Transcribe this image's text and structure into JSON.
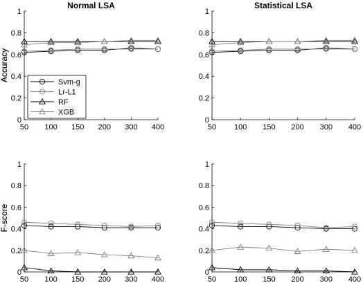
{
  "chart_data": [
    {
      "type": "line",
      "title": "Normal LSA",
      "xlabel": "",
      "ylabel": "Accuracy",
      "x": [
        50,
        100,
        150,
        200,
        300,
        400
      ],
      "x_ticks": [
        "50",
        "100",
        "150",
        "200",
        "300",
        "400"
      ],
      "y_ticks": [
        "0",
        "0.2",
        "0.4",
        "0.6",
        "0.8",
        "1"
      ],
      "ylim": [
        0,
        1
      ],
      "grid": false,
      "legend": "left",
      "series": [
        {
          "name": "Svm-g",
          "marker": "circle",
          "color": "#000000",
          "values": [
            0.62,
            0.63,
            0.64,
            0.64,
            0.66,
            0.65
          ]
        },
        {
          "name": "Lr-L1",
          "marker": "circle",
          "color": "#7f7f7f",
          "values": [
            0.63,
            0.64,
            0.65,
            0.65,
            0.65,
            0.65
          ]
        },
        {
          "name": "RF",
          "marker": "triangle",
          "color": "#000000",
          "values": [
            0.72,
            0.72,
            0.72,
            0.72,
            0.72,
            0.72
          ]
        },
        {
          "name": "XGB",
          "marker": "triangle",
          "color": "#7f7f7f",
          "values": [
            0.69,
            0.71,
            0.71,
            0.72,
            0.73,
            0.73
          ]
        }
      ]
    },
    {
      "type": "line",
      "title": "Statistical LSA",
      "xlabel": "",
      "ylabel": "Accuracy",
      "x": [
        50,
        100,
        150,
        200,
        300,
        400
      ],
      "x_ticks": [
        "50",
        "100",
        "150",
        "200",
        "300",
        "400"
      ],
      "y_ticks": [
        "0",
        "0.2",
        "0.4",
        "0.6",
        "0.8",
        "1"
      ],
      "ylim": [
        0,
        1
      ],
      "grid": false,
      "series": [
        {
          "name": "Svm-g",
          "marker": "circle",
          "color": "#000000",
          "values": [
            0.62,
            0.63,
            0.64,
            0.64,
            0.66,
            0.65
          ]
        },
        {
          "name": "Lr-L1",
          "marker": "circle",
          "color": "#7f7f7f",
          "values": [
            0.63,
            0.64,
            0.65,
            0.65,
            0.65,
            0.65
          ]
        },
        {
          "name": "RF",
          "marker": "triangle",
          "color": "#000000",
          "values": [
            0.72,
            0.72,
            0.72,
            0.72,
            0.72,
            0.72
          ]
        },
        {
          "name": "XGB",
          "marker": "triangle",
          "color": "#7f7f7f",
          "values": [
            0.69,
            0.71,
            0.72,
            0.72,
            0.73,
            0.73
          ]
        }
      ]
    },
    {
      "type": "line",
      "title": "",
      "xlabel": "",
      "ylabel": "F-score",
      "x": [
        50,
        100,
        150,
        200,
        300,
        400
      ],
      "x_ticks": [
        "50",
        "100",
        "150",
        "200",
        "300",
        "400"
      ],
      "y_ticks": [
        "0",
        "0.2",
        "0.4",
        "0.6",
        "0.8",
        "1"
      ],
      "ylim": [
        0,
        1
      ],
      "grid": false,
      "series": [
        {
          "name": "Svm-g",
          "marker": "circle",
          "color": "#000000",
          "values": [
            0.43,
            0.42,
            0.42,
            0.41,
            0.41,
            0.41
          ]
        },
        {
          "name": "Lr-L1",
          "marker": "circle",
          "color": "#7f7f7f",
          "values": [
            0.46,
            0.45,
            0.44,
            0.43,
            0.42,
            0.43
          ]
        },
        {
          "name": "RF",
          "marker": "triangle",
          "color": "#000000",
          "values": [
            0.04,
            0.01,
            0.0,
            0.0,
            0.0,
            0.0
          ]
        },
        {
          "name": "XGB",
          "marker": "triangle",
          "color": "#7f7f7f",
          "values": [
            0.2,
            0.17,
            0.18,
            0.16,
            0.15,
            0.13
          ]
        }
      ]
    },
    {
      "type": "line",
      "title": "",
      "xlabel": "",
      "ylabel": "F-score",
      "x": [
        50,
        100,
        150,
        200,
        300,
        400
      ],
      "x_ticks": [
        "50",
        "100",
        "150",
        "200",
        "300",
        "400"
      ],
      "y_ticks": [
        "0",
        "0.2",
        "0.4",
        "0.6",
        "0.8",
        "1"
      ],
      "ylim": [
        0,
        1
      ],
      "grid": false,
      "series": [
        {
          "name": "Svm-g",
          "marker": "circle",
          "color": "#000000",
          "values": [
            0.43,
            0.42,
            0.42,
            0.41,
            0.4,
            0.4
          ]
        },
        {
          "name": "Lr-L1",
          "marker": "circle",
          "color": "#7f7f7f",
          "values": [
            0.46,
            0.45,
            0.44,
            0.43,
            0.41,
            0.42
          ]
        },
        {
          "name": "RF",
          "marker": "triangle",
          "color": "#000000",
          "values": [
            0.04,
            0.02,
            0.02,
            0.01,
            0.01,
            0.0
          ]
        },
        {
          "name": "XGB",
          "marker": "triangle",
          "color": "#7f7f7f",
          "values": [
            0.2,
            0.23,
            0.22,
            0.19,
            0.21,
            0.2
          ]
        }
      ]
    }
  ]
}
